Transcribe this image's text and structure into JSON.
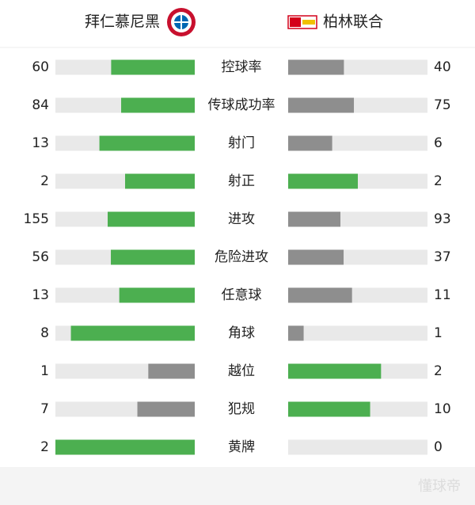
{
  "header": {
    "home": "拜仁慕尼黑",
    "away": "柏林联合"
  },
  "stats": [
    {
      "label": "控球率",
      "home": 60,
      "away": 40
    },
    {
      "label": "传球成功率",
      "home": 84,
      "away": 75
    },
    {
      "label": "射门",
      "home": 13,
      "away": 6
    },
    {
      "label": "射正",
      "home": 2,
      "away": 2
    },
    {
      "label": "进攻",
      "home": 155,
      "away": 93
    },
    {
      "label": "危险进攻",
      "home": 56,
      "away": 37
    },
    {
      "label": "任意球",
      "home": 13,
      "away": 11
    },
    {
      "label": "角球",
      "home": 8,
      "away": 1
    },
    {
      "label": "越位",
      "home": 1,
      "away": 2
    },
    {
      "label": "犯规",
      "home": 7,
      "away": 10
    },
    {
      "label": "黄牌",
      "home": 2,
      "away": 0
    }
  ],
  "colors": {
    "more": "#4caf50",
    "less": "#8e8e8e",
    "track": "#e9e9e9"
  },
  "watermark": "懂球帝"
}
